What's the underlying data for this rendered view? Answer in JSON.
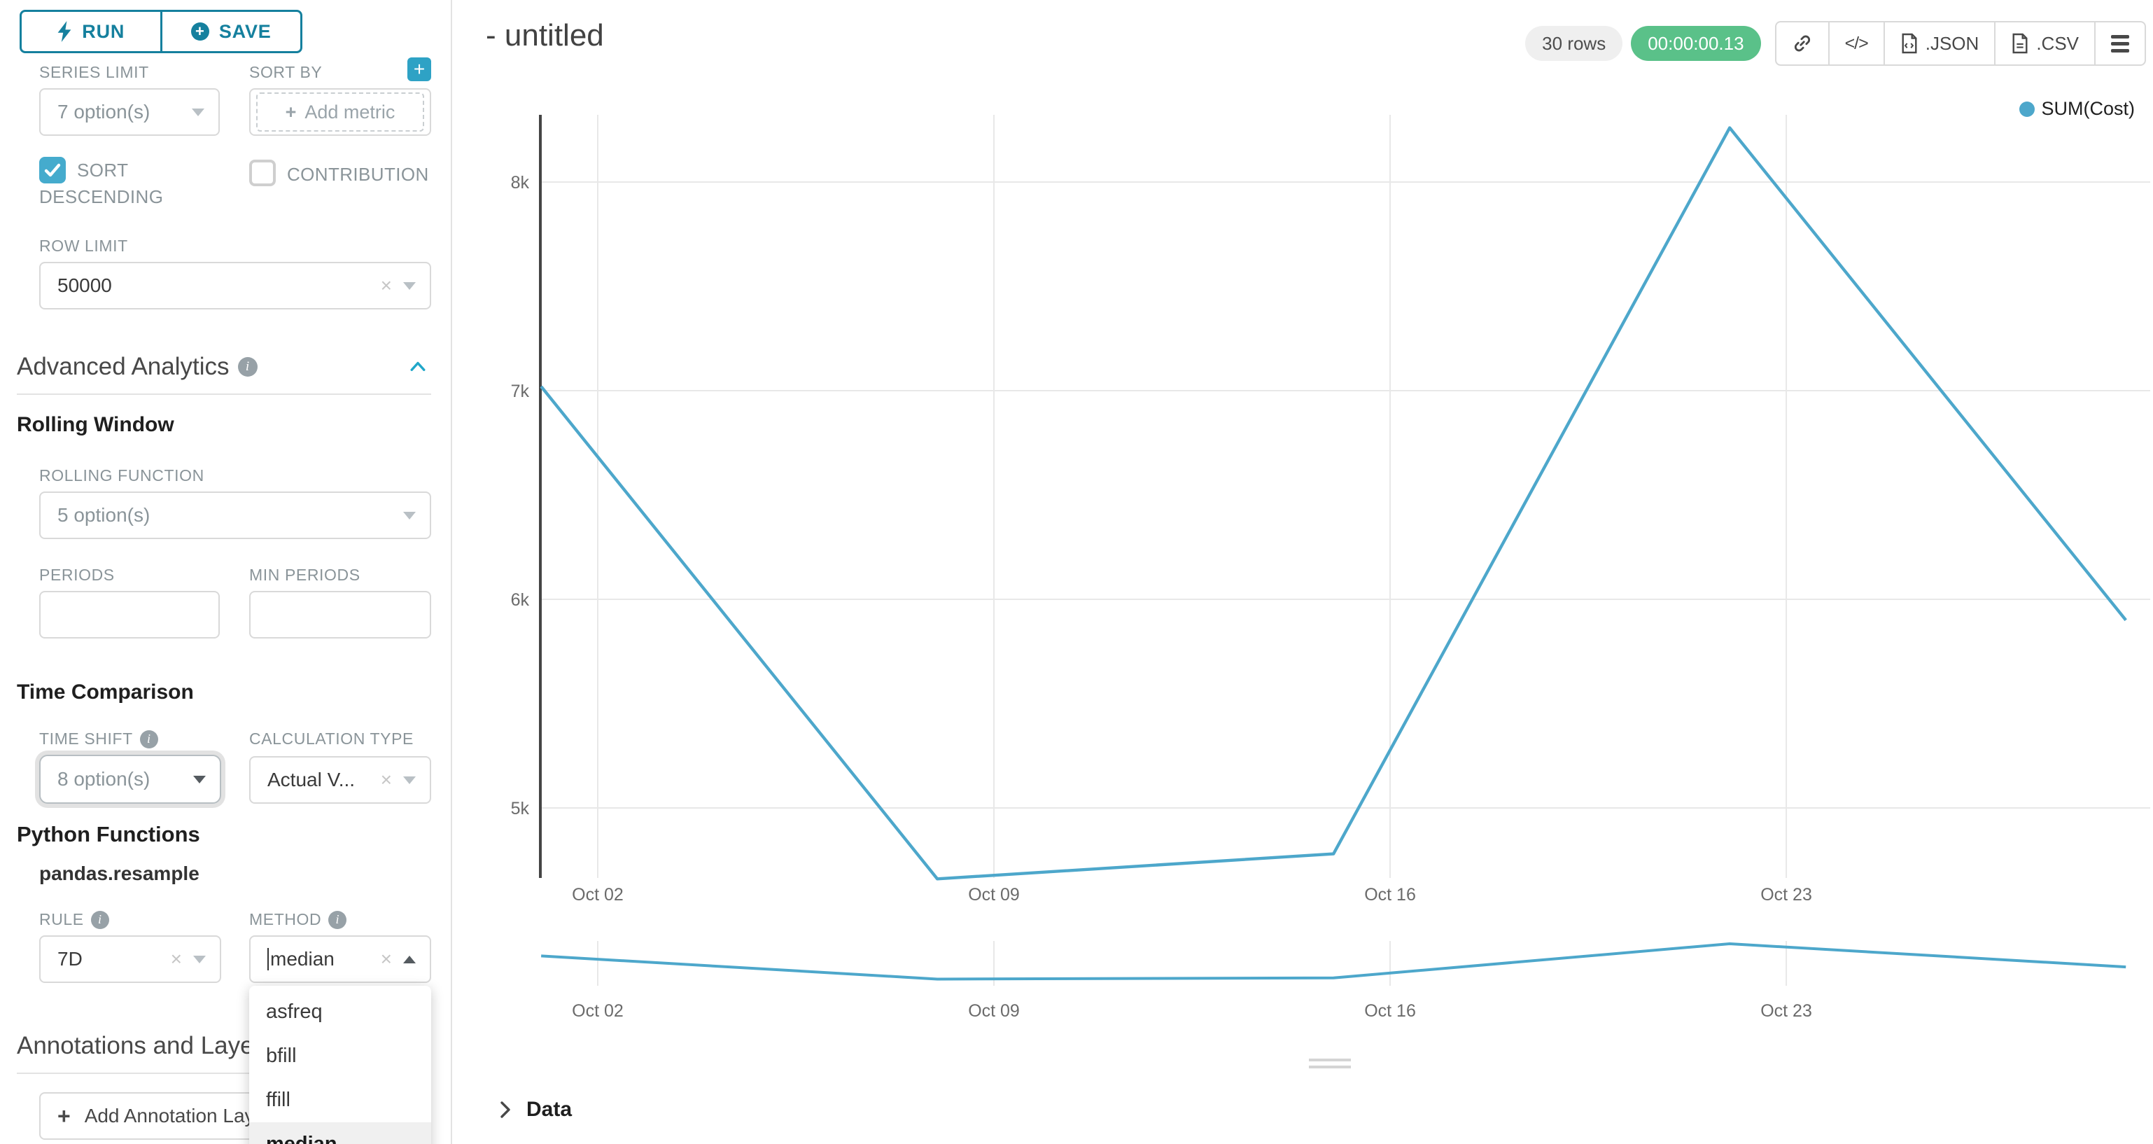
{
  "toolbar": {
    "run": "RUN",
    "save": "SAVE"
  },
  "sidebar": {
    "series_limit": {
      "label": "SERIES LIMIT",
      "value": "7 option(s)"
    },
    "sort_by": {
      "label": "SORT BY",
      "placeholder": "Add metric"
    },
    "sort_descending": {
      "label": "SORT DESCENDING",
      "checked": true
    },
    "contribution": {
      "label": "CONTRIBUTION",
      "checked": false
    },
    "row_limit": {
      "label": "ROW LIMIT",
      "value": "50000"
    },
    "advanced_analytics": {
      "title": "Advanced Analytics"
    },
    "rolling_window": {
      "title": "Rolling Window",
      "rolling_function": {
        "label": "ROLLING FUNCTION",
        "value": "5 option(s)"
      },
      "periods": {
        "label": "PERIODS",
        "value": ""
      },
      "min_periods": {
        "label": "MIN PERIODS",
        "value": ""
      }
    },
    "time_comparison": {
      "title": "Time Comparison",
      "time_shift": {
        "label": "TIME SHIFT",
        "value": "8 option(s)"
      },
      "calculation_type": {
        "label": "CALCULATION TYPE",
        "value": "Actual V..."
      }
    },
    "python_functions": {
      "title": "Python Functions",
      "subtitle": "pandas.resample",
      "rule": {
        "label": "RULE",
        "value": "7D"
      },
      "method": {
        "label": "METHOD",
        "value": "median",
        "selected": "median",
        "options": [
          "asfreq",
          "bfill",
          "ffill",
          "median"
        ]
      }
    },
    "annotations": {
      "title": "Annotations and Layers",
      "add_button": "Add Annotation Layer"
    }
  },
  "header": {
    "title": "- untitled",
    "rows_badge": "30 rows",
    "duration_badge": "00:00:00.13",
    "export_json_label": ".JSON",
    "export_csv_label": ".CSV"
  },
  "data_panel": {
    "label": "Data"
  },
  "chart_data": {
    "type": "line",
    "title": "",
    "xlabel": "",
    "ylabel": "",
    "grid": true,
    "legend": {
      "label": "SUM(Cost)",
      "position": "top-right"
    },
    "line_color": "#4da7cb",
    "ylim": [
      4400,
      8500
    ],
    "y_ticks": [
      {
        "value": 8000,
        "label": "8k"
      },
      {
        "value": 7000,
        "label": "7k"
      },
      {
        "value": 6000,
        "label": "6k"
      },
      {
        "value": 5000,
        "label": "5k"
      }
    ],
    "x_ticks": [
      {
        "day": 1,
        "label": "Oct 02"
      },
      {
        "day": 8,
        "label": "Oct 09"
      },
      {
        "day": 15,
        "label": "Oct 16"
      },
      {
        "day": 22,
        "label": "Oct 23"
      }
    ],
    "series": [
      {
        "name": "SUM(Cost)",
        "dates": [
          "Oct 01",
          "Oct 08",
          "Oct 15",
          "Oct 22",
          "Oct 29"
        ],
        "days_from_oct01": [
          0,
          7,
          14,
          21,
          28
        ],
        "values": [
          7020,
          4660,
          4780,
          8260,
          5900
        ]
      }
    ],
    "mini_chart": {
      "type": "context_brush",
      "same_series_as_main": true
    }
  }
}
